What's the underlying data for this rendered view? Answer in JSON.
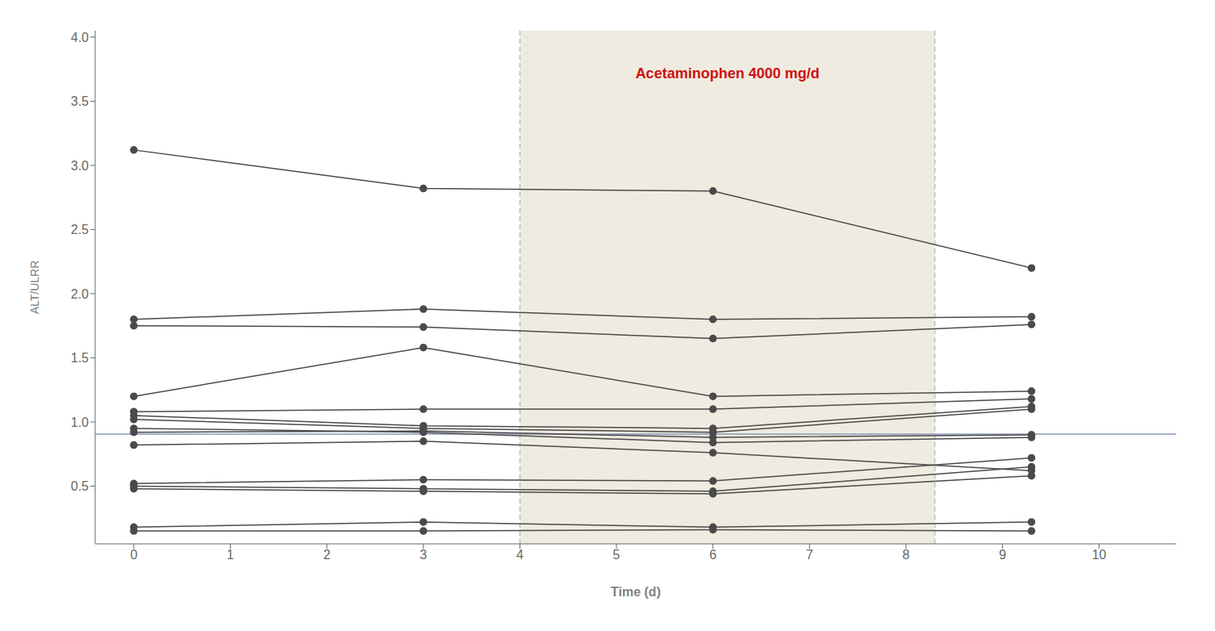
{
  "chart_data": {
    "type": "line",
    "xlabel": "Time (d)",
    "ylabel": "ALT/ULRR",
    "x": [
      0,
      3,
      6,
      9.3
    ],
    "xlim": [
      -0.4,
      10.8
    ],
    "ylim": [
      0.05,
      4.05
    ],
    "xticks": [
      0,
      1,
      2,
      3,
      4,
      5,
      6,
      7,
      8,
      9,
      10
    ],
    "yticks": [
      0.5,
      {
        "value": 1.0,
        "label": "1.0"
      },
      1.5,
      {
        "value": 2.0,
        "label": "2.0"
      },
      2.5,
      {
        "value": 3.0,
        "label": "3.0"
      },
      3.5,
      {
        "value": 4.0,
        "label": "4.0"
      }
    ],
    "grid": false,
    "color": "#4a4a4a",
    "marker": "circle",
    "series": [
      {
        "values": [
          3.12,
          2.82,
          2.8,
          2.2
        ]
      },
      {
        "values": [
          1.8,
          1.88,
          1.8,
          1.82
        ]
      },
      {
        "values": [
          1.75,
          1.74,
          1.65,
          1.76
        ]
      },
      {
        "values": [
          1.2,
          1.58,
          1.2,
          1.24
        ]
      },
      {
        "values": [
          1.08,
          1.1,
          1.1,
          1.18
        ]
      },
      {
        "values": [
          1.05,
          0.97,
          0.95,
          1.12
        ]
      },
      {
        "values": [
          1.02,
          0.95,
          0.92,
          1.1
        ]
      },
      {
        "values": [
          0.92,
          0.93,
          0.88,
          0.9
        ]
      },
      {
        "values": [
          0.52,
          0.55,
          0.54,
          0.72
        ]
      },
      {
        "values": [
          0.5,
          0.48,
          0.46,
          0.65
        ]
      },
      {
        "values": [
          0.48,
          0.46,
          0.44,
          0.58
        ]
      },
      {
        "values": [
          0.18,
          0.22,
          0.18,
          0.22
        ]
      },
      {
        "values": [
          0.15,
          0.15,
          0.16,
          0.15
        ]
      },
      {
        "values": [
          0.82,
          0.85,
          0.76,
          0.62
        ]
      },
      {
        "values": [
          0.95,
          0.92,
          0.84,
          0.88
        ]
      }
    ],
    "shaded_regions": [
      {
        "x0": 4.0,
        "x1": 8.3,
        "color": "#f0ebe0"
      }
    ],
    "reference_lines": [
      {
        "y": 0.905,
        "color": "#8899bb"
      }
    ],
    "annotations": [
      {
        "text": "Acetaminophen 4000 mg/d",
        "x": 6.15,
        "y": 3.72,
        "color": "#cc1111"
      }
    ]
  }
}
